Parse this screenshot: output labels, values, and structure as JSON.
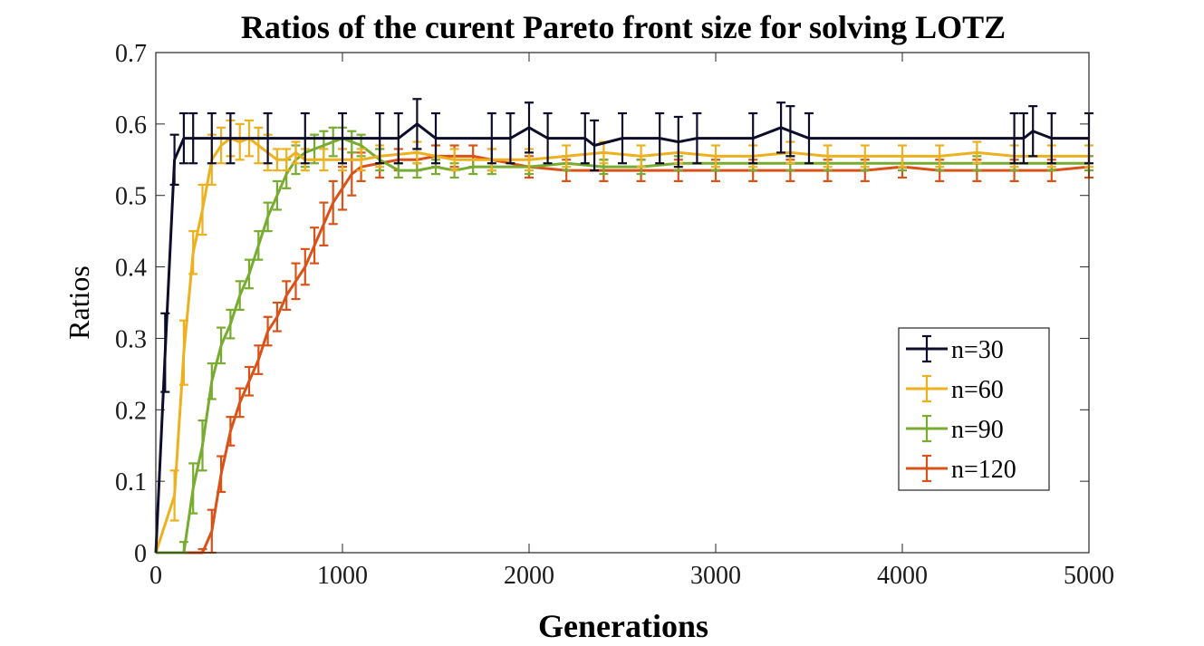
{
  "chart_data": {
    "type": "line",
    "title": "Ratios of the curent Pareto front size for solving LOTZ",
    "xlabel": "Generations",
    "ylabel": "Ratios",
    "xlim": [
      0,
      5000
    ],
    "ylim": [
      0,
      0.7
    ],
    "xticks": [
      "0",
      "1000",
      "2000",
      "3000",
      "4000",
      "5000"
    ],
    "yticks": [
      "0",
      "0.1",
      "0.2",
      "0.3",
      "0.4",
      "0.5",
      "0.6",
      "0.7"
    ],
    "xtick_values": [
      0,
      1000,
      2000,
      3000,
      4000,
      5000
    ],
    "ytick_values": [
      0,
      0.1,
      0.2,
      0.3,
      0.4,
      0.5,
      0.6,
      0.7
    ],
    "error_bars": true,
    "legend_position": "right-middle",
    "series": [
      {
        "name": "n=30",
        "color": "#0d0d2b",
        "x": [
          0,
          50,
          100,
          150,
          200,
          300,
          400,
          600,
          800,
          1000,
          1200,
          1300,
          1400,
          1500,
          1800,
          1900,
          2000,
          2100,
          2300,
          2350,
          2500,
          2700,
          2800,
          2900,
          3200,
          3350,
          3400,
          3500,
          4600,
          4650,
          4700,
          4800,
          5000
        ],
        "y": [
          0,
          0.28,
          0.55,
          0.58,
          0.58,
          0.58,
          0.58,
          0.58,
          0.58,
          0.58,
          0.58,
          0.58,
          0.6,
          0.58,
          0.58,
          0.58,
          0.595,
          0.58,
          0.58,
          0.57,
          0.58,
          0.58,
          0.575,
          0.58,
          0.58,
          0.595,
          0.59,
          0.58,
          0.58,
          0.58,
          0.59,
          0.58,
          0.58
        ],
        "err": [
          0,
          0.055,
          0.035,
          0.035,
          0.035,
          0.035,
          0.035,
          0.035,
          0.035,
          0.035,
          0.035,
          0.035,
          0.035,
          0.035,
          0.035,
          0.035,
          0.035,
          0.035,
          0.035,
          0.035,
          0.035,
          0.035,
          0.035,
          0.035,
          0.035,
          0.035,
          0.035,
          0.035,
          0.035,
          0.035,
          0.035,
          0.035,
          0.035
        ]
      },
      {
        "name": "n=60",
        "color": "#edb120",
        "x": [
          0,
          100,
          150,
          200,
          250,
          300,
          350,
          400,
          450,
          500,
          550,
          600,
          650,
          700,
          750,
          800,
          900,
          1000,
          1100,
          1200,
          1400,
          1600,
          1800,
          2000,
          2200,
          2400,
          2600,
          2800,
          3000,
          3200,
          3400,
          3600,
          3800,
          4000,
          4200,
          4400,
          4600,
          4800,
          5000
        ],
        "y": [
          0,
          0.08,
          0.28,
          0.42,
          0.48,
          0.55,
          0.57,
          0.58,
          0.575,
          0.58,
          0.57,
          0.56,
          0.55,
          0.55,
          0.56,
          0.55,
          0.55,
          0.55,
          0.55,
          0.555,
          0.56,
          0.55,
          0.55,
          0.55,
          0.555,
          0.56,
          0.555,
          0.56,
          0.555,
          0.555,
          0.56,
          0.555,
          0.555,
          0.555,
          0.555,
          0.56,
          0.555,
          0.555,
          0.555
        ],
        "err": [
          0,
          0.035,
          0.045,
          0.03,
          0.035,
          0.035,
          0.025,
          0.025,
          0.025,
          0.025,
          0.025,
          0.025,
          0.015,
          0.015,
          0.015,
          0.015,
          0.015,
          0.015,
          0.015,
          0.015,
          0.015,
          0.015,
          0.015,
          0.015,
          0.015,
          0.015,
          0.015,
          0.015,
          0.015,
          0.015,
          0.015,
          0.015,
          0.015,
          0.015,
          0.015,
          0.015,
          0.015,
          0.015,
          0.015
        ]
      },
      {
        "name": "n=90",
        "color": "#77ac30",
        "x": [
          0,
          150,
          200,
          250,
          300,
          350,
          400,
          450,
          500,
          550,
          600,
          650,
          700,
          750,
          800,
          850,
          900,
          950,
          1000,
          1050,
          1100,
          1200,
          1300,
          1400,
          1500,
          1600,
          1700,
          1800,
          2000,
          2200,
          2400,
          2600,
          2800,
          3000,
          3200,
          3400,
          3600,
          3800,
          4000,
          4200,
          4400,
          4600,
          4800,
          5000
        ],
        "y": [
          0,
          0,
          0.09,
          0.15,
          0.24,
          0.29,
          0.32,
          0.36,
          0.39,
          0.43,
          0.47,
          0.5,
          0.53,
          0.55,
          0.56,
          0.565,
          0.57,
          0.575,
          0.58,
          0.575,
          0.57,
          0.55,
          0.535,
          0.535,
          0.54,
          0.535,
          0.54,
          0.54,
          0.54,
          0.545,
          0.54,
          0.54,
          0.545,
          0.545,
          0.545,
          0.545,
          0.545,
          0.545,
          0.545,
          0.545,
          0.545,
          0.545,
          0.545,
          0.545
        ],
        "err": [
          0,
          0.015,
          0.035,
          0.035,
          0.025,
          0.025,
          0.02,
          0.02,
          0.02,
          0.02,
          0.02,
          0.02,
          0.02,
          0.02,
          0.02,
          0.02,
          0.02,
          0.02,
          0.015,
          0.015,
          0.015,
          0.015,
          0.01,
          0.01,
          0.01,
          0.01,
          0.01,
          0.01,
          0.01,
          0.01,
          0.01,
          0.01,
          0.01,
          0.01,
          0.01,
          0.01,
          0.01,
          0.01,
          0.01,
          0.01,
          0.01,
          0.01,
          0.01,
          0.01
        ]
      },
      {
        "name": "n=120",
        "color": "#d95319",
        "x": [
          0,
          250,
          300,
          350,
          400,
          450,
          500,
          550,
          600,
          650,
          700,
          750,
          800,
          850,
          900,
          950,
          1000,
          1050,
          1100,
          1200,
          1300,
          1400,
          1500,
          1600,
          1700,
          1800,
          2000,
          2200,
          2400,
          2600,
          2800,
          3000,
          3200,
          3400,
          3600,
          3800,
          4000,
          4200,
          4400,
          4600,
          4800,
          5000
        ],
        "y": [
          0,
          0,
          0.03,
          0.11,
          0.17,
          0.21,
          0.24,
          0.27,
          0.31,
          0.33,
          0.36,
          0.38,
          0.4,
          0.43,
          0.46,
          0.49,
          0.51,
          0.53,
          0.54,
          0.545,
          0.55,
          0.55,
          0.555,
          0.555,
          0.555,
          0.55,
          0.54,
          0.535,
          0.535,
          0.535,
          0.535,
          0.535,
          0.535,
          0.535,
          0.535,
          0.535,
          0.54,
          0.535,
          0.535,
          0.535,
          0.535,
          0.54
        ],
        "err": [
          0,
          0.005,
          0.03,
          0.025,
          0.02,
          0.02,
          0.02,
          0.02,
          0.02,
          0.02,
          0.02,
          0.025,
          0.025,
          0.025,
          0.03,
          0.03,
          0.03,
          0.03,
          0.02,
          0.02,
          0.015,
          0.015,
          0.015,
          0.015,
          0.015,
          0.015,
          0.015,
          0.015,
          0.015,
          0.015,
          0.015,
          0.015,
          0.015,
          0.015,
          0.015,
          0.015,
          0.015,
          0.015,
          0.015,
          0.015,
          0.015,
          0.015
        ]
      }
    ]
  }
}
